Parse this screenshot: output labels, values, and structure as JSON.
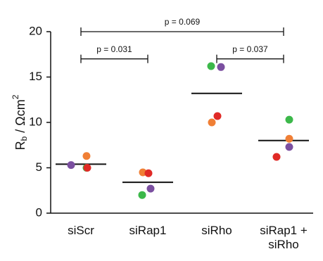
{
  "chart_data": {
    "type": "scatter",
    "ylabel": {
      "main": "R",
      "sub": "b",
      "rest": " / Ωcm",
      "sup": "2"
    },
    "categories": [
      "siScr",
      "siRap1",
      "siRho",
      "siRap1 + siRho"
    ],
    "series": [
      {
        "color": "#7b4fa0",
        "values": [
          5.3,
          2.7,
          16.1,
          7.3
        ]
      },
      {
        "color": "#f07f35",
        "values": [
          6.3,
          4.5,
          10.0,
          8.2
        ]
      },
      {
        "color": "#3cb84a",
        "values": [
          5.0,
          2.0,
          16.2,
          10.3
        ]
      },
      {
        "color": "#e02a26",
        "values": [
          5.0,
          4.4,
          10.7,
          6.2
        ]
      }
    ],
    "means": [
      5.4,
      3.4,
      13.2,
      8.0
    ],
    "ylim": [
      0,
      20
    ],
    "yticks": [
      0,
      5,
      10,
      15,
      20
    ],
    "comparisons": [
      {
        "text": "p = 0.069",
        "from": 0,
        "to": 3
      },
      {
        "text": "p = 0.031",
        "from": 0,
        "to": 1
      },
      {
        "text": "p = 0.037",
        "from": 2,
        "to": 3
      }
    ]
  }
}
